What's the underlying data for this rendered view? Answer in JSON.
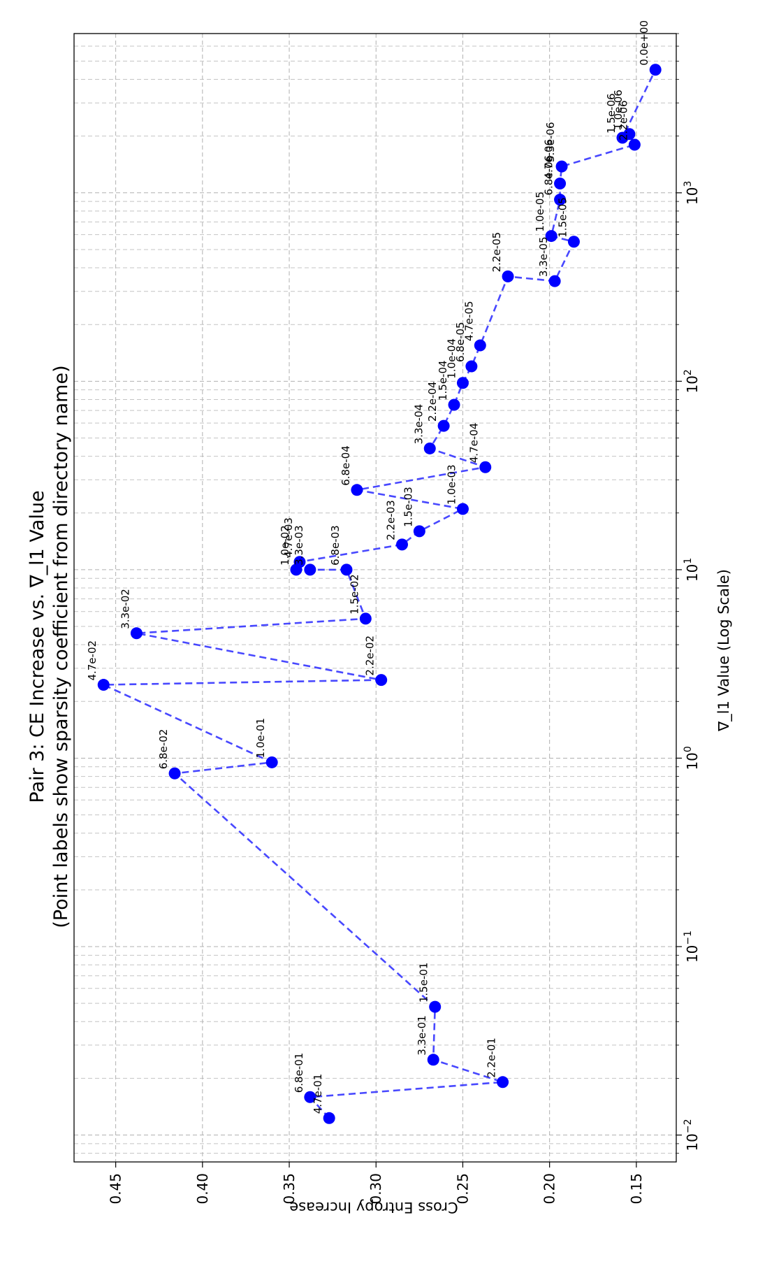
{
  "chart_data": {
    "type": "scatter",
    "title_line1": "Pair 3: CE Increase vs. ∇_l1 Value",
    "title_line2": "(Point labels show sparsity coefficient from directory name)",
    "xlabel": "∇_l1 Value (Log Scale)",
    "ylabel": "Cross Entropy Increase",
    "xscale": "log",
    "xlim": [
      0.0072,
      7000
    ],
    "ylim": [
      0.127,
      0.474
    ],
    "grid": true,
    "line_style": "dashed",
    "color": "#0000ff",
    "x_tick_labels": [
      {
        "exp": "-2",
        "value": 0.01
      },
      {
        "exp": "-1",
        "value": 0.1
      },
      {
        "exp": "0",
        "value": 1
      },
      {
        "exp": "1",
        "value": 10
      },
      {
        "exp": "2",
        "value": 100
      },
      {
        "exp": "3",
        "value": 1000
      }
    ],
    "y_tick_labels": [
      "0.15",
      "0.20",
      "0.25",
      "0.30",
      "0.35",
      "0.40",
      "0.45"
    ],
    "y_tick_values": [
      0.15,
      0.2,
      0.25,
      0.3,
      0.35,
      0.4,
      0.45
    ],
    "points": [
      {
        "x": 0.0123,
        "y": 0.327,
        "label": "4.7e-01"
      },
      {
        "x": 0.0159,
        "y": 0.338,
        "label": "6.8e-01"
      },
      {
        "x": 0.0191,
        "y": 0.227,
        "label": "2.2e-01"
      },
      {
        "x": 0.0251,
        "y": 0.267,
        "label": "3.3e-01"
      },
      {
        "x": 0.0479,
        "y": 0.266,
        "label": "1.5e-01"
      },
      {
        "x": 0.83,
        "y": 0.416,
        "label": "6.8e-02"
      },
      {
        "x": 0.95,
        "y": 0.36,
        "label": "1.0e-01"
      },
      {
        "x": 2.45,
        "y": 0.457,
        "label": "4.7e-02"
      },
      {
        "x": 2.6,
        "y": 0.297,
        "label": "2.2e-02"
      },
      {
        "x": 4.6,
        "y": 0.438,
        "label": "3.3e-02"
      },
      {
        "x": 5.5,
        "y": 0.306,
        "label": "1.5e-02"
      },
      {
        "x": 10.0,
        "y": 0.317,
        "label": "6.8e-03"
      },
      {
        "x": 10.0,
        "y": 0.338,
        "label": "3.3e-03"
      },
      {
        "x": 10.0,
        "y": 0.346,
        "label": "1.0e-02"
      },
      {
        "x": 11.0,
        "y": 0.344,
        "label": "4.7e-03"
      },
      {
        "x": 13.6,
        "y": 0.285,
        "label": "2.2e-03"
      },
      {
        "x": 16.0,
        "y": 0.275,
        "label": "1.5e-03"
      },
      {
        "x": 21.0,
        "y": 0.25,
        "label": "1.0e-03"
      },
      {
        "x": 26.5,
        "y": 0.311,
        "label": "6.8e-04"
      },
      {
        "x": 35.0,
        "y": 0.237,
        "label": "4.7e-04"
      },
      {
        "x": 44.0,
        "y": 0.269,
        "label": "3.3e-04"
      },
      {
        "x": 58.0,
        "y": 0.261,
        "label": "2.2e-04"
      },
      {
        "x": 75.0,
        "y": 0.255,
        "label": "1.5e-04"
      },
      {
        "x": 98.0,
        "y": 0.25,
        "label": "1.0e-04"
      },
      {
        "x": 120.0,
        "y": 0.245,
        "label": "6.8e-05"
      },
      {
        "x": 155.0,
        "y": 0.24,
        "label": "4.7e-05"
      },
      {
        "x": 360.0,
        "y": 0.224,
        "label": "2.2e-05"
      },
      {
        "x": 340.0,
        "y": 0.197,
        "label": "3.3e-05"
      },
      {
        "x": 550.0,
        "y": 0.186,
        "label": "1.5e-05"
      },
      {
        "x": 590.0,
        "y": 0.199,
        "label": "1.0e-05"
      },
      {
        "x": 920.0,
        "y": 0.194,
        "label": "6.8e-06"
      },
      {
        "x": 1120.0,
        "y": 0.194,
        "label": "4.7e-06"
      },
      {
        "x": 1380.0,
        "y": 0.193,
        "label": "3.3e-06"
      },
      {
        "x": 1800.0,
        "y": 0.151,
        "label": "2.2e-06"
      },
      {
        "x": 2050.0,
        "y": 0.154,
        "label": "1.0e-06"
      },
      {
        "x": 1960.0,
        "y": 0.158,
        "label": "1.5e-06"
      },
      {
        "x": 4500.0,
        "y": 0.139,
        "label": "0.0e+00"
      }
    ]
  }
}
